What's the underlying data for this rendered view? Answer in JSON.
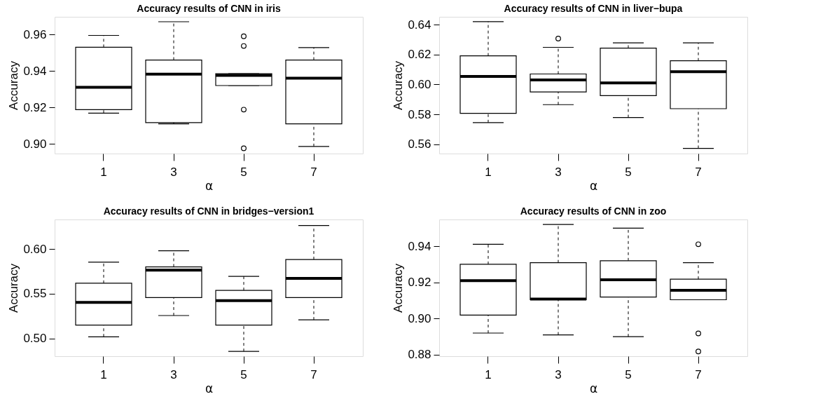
{
  "chart_data": [
    {
      "type": "box",
      "title": "Accuracy results of  CNN  in iris",
      "xlabel": "α",
      "ylabel": "Accuracy",
      "categories": [
        "1",
        "3",
        "5",
        "7"
      ],
      "ylim": [
        0.8947,
        0.9697
      ],
      "yticks": [
        {
          "value": 0.9,
          "label": "0.90"
        },
        0.92,
        0.94,
        0.96
      ],
      "boxes": [
        {
          "low": 0.9169,
          "q1": 0.9188,
          "median": 0.931,
          "q3": 0.953,
          "high": 0.9595
        },
        {
          "low": 0.911,
          "q1": 0.9117,
          "median": 0.9383,
          "q3": 0.946,
          "high": 0.967
        },
        {
          "low": 0.932,
          "q1": 0.932,
          "median": 0.9376,
          "q3": 0.9385,
          "high": 0.9385,
          "outliers": [
            0.959,
            0.9537,
            0.9188,
            0.8976
          ]
        },
        {
          "low": 0.8986,
          "q1": 0.911,
          "median": 0.936,
          "q3": 0.946,
          "high": 0.9528
        }
      ]
    },
    {
      "type": "box",
      "title": "Accuracy results of  CNN  in liver−bupa",
      "xlabel": "α",
      "ylabel": "Accuracy",
      "categories": [
        "1",
        "3",
        "5",
        "7"
      ],
      "ylim": [
        0.5538,
        0.6452
      ],
      "yticks": [
        0.56,
        0.58,
        {
          "value": 0.6,
          "label": "0.60"
        },
        0.62,
        0.64
      ],
      "boxes": [
        {
          "low": 0.5745,
          "q1": 0.5807,
          "median": 0.6054,
          "q3": 0.6191,
          "high": 0.642
        },
        {
          "low": 0.5865,
          "q1": 0.595,
          "median": 0.603,
          "q3": 0.607,
          "high": 0.6248,
          "outliers": [
            0.6307
          ]
        },
        {
          "low": 0.5779,
          "q1": 0.5925,
          "median": 0.601,
          "q3": 0.6243,
          "high": 0.6278
        },
        {
          "low": 0.5573,
          "q1": 0.5838,
          "median": 0.6085,
          "q3": 0.6158,
          "high": 0.6278
        }
      ]
    },
    {
      "type": "box",
      "title": "Accuracy results of  CNN  in bridges−version1",
      "xlabel": "α",
      "ylabel": "Accuracy",
      "categories": [
        "1",
        "3",
        "5",
        "7"
      ],
      "ylim": [
        0.4802,
        0.6329
      ],
      "yticks": [
        {
          "value": 0.5,
          "label": "0.50"
        },
        0.55,
        {
          "value": 0.6,
          "label": "0.60"
        }
      ],
      "boxes": [
        {
          "low": 0.5019,
          "q1": 0.515,
          "median": 0.5403,
          "q3": 0.5617,
          "high": 0.5853
        },
        {
          "low": 0.5256,
          "q1": 0.5457,
          "median": 0.5764,
          "q3": 0.58,
          "high": 0.598
        },
        {
          "low": 0.4856,
          "q1": 0.515,
          "median": 0.5422,
          "q3": 0.5537,
          "high": 0.5693
        },
        {
          "low": 0.5208,
          "q1": 0.5457,
          "median": 0.5671,
          "q3": 0.5882,
          "high": 0.6262
        }
      ]
    },
    {
      "type": "box",
      "title": "Accuracy results of  CNN  in zoo",
      "xlabel": "α",
      "ylabel": "Accuracy",
      "categories": [
        "1",
        "3",
        "5",
        "7"
      ],
      "ylim": [
        0.8792,
        0.9548
      ],
      "yticks": [
        0.88,
        {
          "value": 0.9,
          "label": "0.90"
        },
        0.92,
        0.94
      ],
      "boxes": [
        {
          "low": 0.892,
          "q1": 0.9019,
          "median": 0.921,
          "q3": 0.93,
          "high": 0.9411
        },
        {
          "low": 0.891,
          "q1": 0.9104,
          "median": 0.9108,
          "q3": 0.9309,
          "high": 0.952
        },
        {
          "low": 0.89,
          "q1": 0.9119,
          "median": 0.9215,
          "q3": 0.932,
          "high": 0.95
        },
        {
          "low": 0.9104,
          "q1": 0.9104,
          "median": 0.9156,
          "q3": 0.9218,
          "high": 0.9309,
          "outliers": [
            0.9411,
            0.8918,
            0.8818
          ]
        }
      ]
    }
  ]
}
